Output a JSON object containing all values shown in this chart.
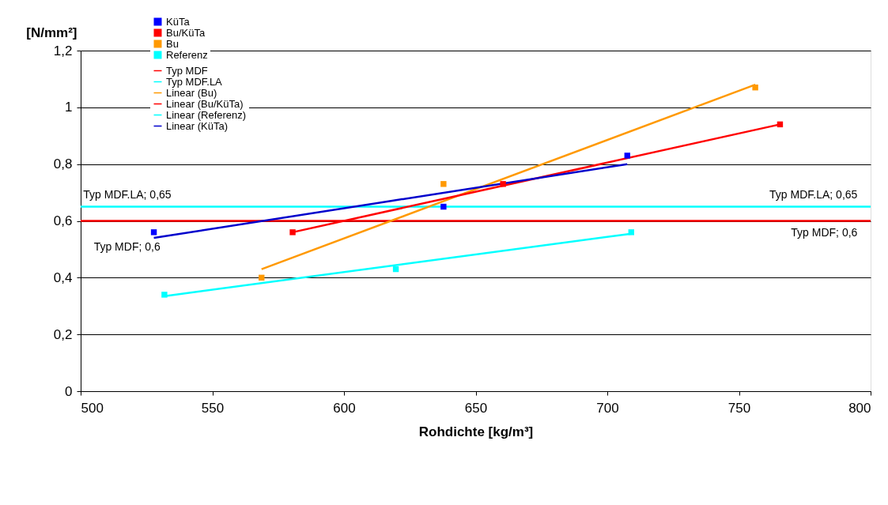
{
  "chart_data": {
    "type": "scatter",
    "xlabel": "Rohdichte [kg/m³]",
    "ylabel": "[N/mm²]",
    "xlim": [
      500,
      800
    ],
    "xticks": [
      500,
      550,
      600,
      650,
      700,
      750,
      800
    ],
    "ylim": [
      0,
      1.2
    ],
    "yticks": [
      0,
      {
        "value": 0.2,
        "label": "0,2"
      },
      {
        "value": 0.4,
        "label": "0,4"
      },
      {
        "value": 0.6,
        "label": "0,6"
      },
      {
        "value": 0.8,
        "label": "0,8"
      },
      1,
      {
        "value": 1.2,
        "label": "1,2"
      }
    ],
    "grid": "y",
    "legend": "top left",
    "marker": "square",
    "series": [
      {
        "name": "KüTa",
        "color": "#0000ff",
        "x": [
          527.8,
          637.8,
          707.6
        ],
        "values": [
          0.56,
          0.65,
          0.83
        ]
      },
      {
        "name": "Bu/KüTa",
        "color": "#ff0000",
        "x": [
          580.5,
          660.4,
          765.6
        ],
        "values": [
          0.56,
          0.73,
          0.94
        ]
      },
      {
        "name": "Bu",
        "color": "#ff9900",
        "x": [
          568.7,
          637.8,
          756.2
        ],
        "values": [
          0.4,
          0.73,
          1.07
        ]
      },
      {
        "name": "Referenz",
        "color": "#00ffff",
        "x": [
          531.8,
          619.7,
          709.1
        ],
        "values": [
          0.34,
          0.43,
          0.56
        ]
      },
      {
        "name": "Typ MDF",
        "type": "line",
        "marker": "none",
        "color": "#ff0000",
        "x": [
          500,
          800
        ],
        "values": [
          0.6,
          0.6
        ]
      },
      {
        "name": "Typ MDF.LA",
        "type": "line",
        "marker": "none",
        "color": "#00ffff",
        "x": [
          500,
          800
        ],
        "values": [
          0.65,
          0.65
        ]
      },
      {
        "name": "Linear (Bu)",
        "type": "line",
        "marker": "none",
        "color": "#ff9900",
        "x": [
          568.7,
          756.2
        ],
        "values": [
          0.43,
          1.08
        ]
      },
      {
        "name": "Linear (Bu/KüTa)",
        "type": "line",
        "marker": "none",
        "color": "#ff0000",
        "x": [
          580.5,
          765.6
        ],
        "values": [
          0.56,
          0.94
        ]
      },
      {
        "name": "Linear (Referenz)",
        "type": "line",
        "marker": "none",
        "color": "#00ffff",
        "x": [
          531.8,
          709.1
        ],
        "values": [
          0.335,
          0.555
        ]
      },
      {
        "name": "Linear (KüTa)",
        "type": "line",
        "marker": "none",
        "color": "#0000cc",
        "x": [
          527.8,
          707.6
        ],
        "values": [
          0.54,
          0.8
        ]
      }
    ],
    "annotations": [
      {
        "text": "Typ MDF.LA; 0,65",
        "x": 501,
        "y": 0.65
      },
      {
        "text": "Typ MDF.LA; 0,65",
        "x": 795,
        "y": 0.65
      },
      {
        "text": "Typ MDF; 0,6",
        "x": 505,
        "y": 0.6
      },
      {
        "text": "Typ MDF; 0,6",
        "x": 795,
        "y": 0.6
      }
    ]
  }
}
